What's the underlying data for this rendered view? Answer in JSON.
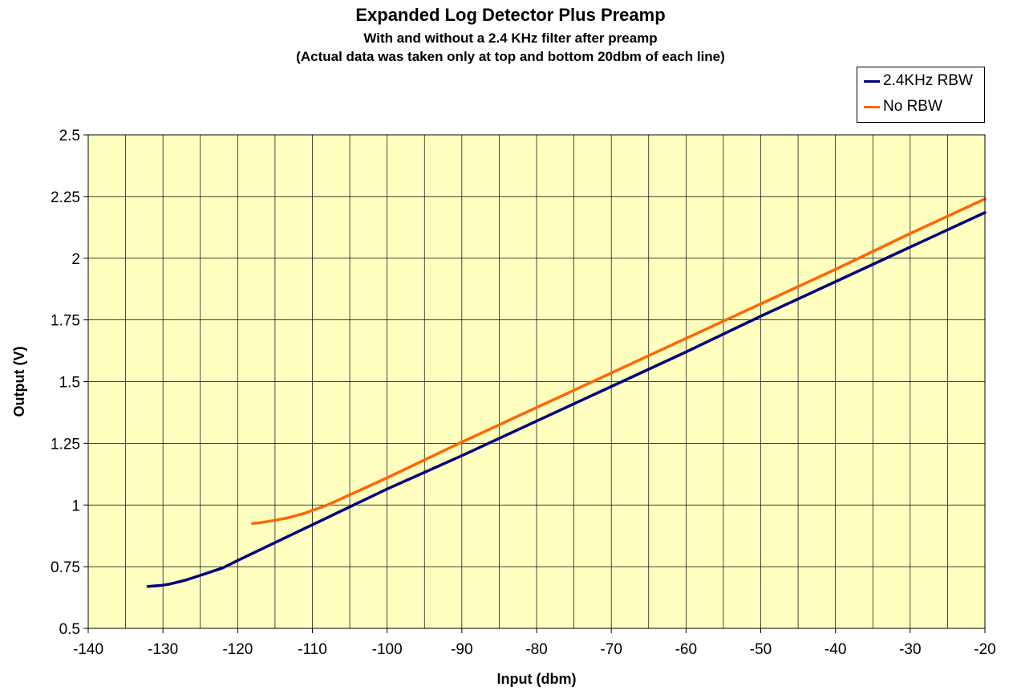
{
  "chart_data": {
    "type": "line",
    "title": "Expanded Log Detector Plus Preamp",
    "subtitle_1": "With and without a 2.4 KHz filter after preamp",
    "subtitle_2": "(Actual data was taken only at top and bottom 20dbm of each line)",
    "xlabel": "Input (dbm)",
    "ylabel": "Output (V)",
    "xlim": [
      -140,
      -20
    ],
    "ylim": [
      0.5,
      2.5
    ],
    "x_ticks": [
      -140,
      -130,
      -120,
      -110,
      -100,
      -90,
      -80,
      -70,
      -60,
      -50,
      -40,
      -30,
      -20
    ],
    "y_ticks": [
      0.5,
      0.75,
      1,
      1.25,
      1.5,
      1.75,
      2,
      2.25,
      2.5
    ],
    "x_tick_labels": [
      "-140",
      "-130",
      "-120",
      "-110",
      "-100",
      "-90",
      "-80",
      "-70",
      "-60",
      "-50",
      "-40",
      "-30",
      "-20"
    ],
    "y_tick_labels": [
      "0.5",
      "0.75",
      "1",
      "1.25",
      "1.5",
      "1.75",
      "2",
      "2.25",
      "2.5"
    ],
    "x_minor_step": 5,
    "grid": true,
    "plot_background": "#ffffc0",
    "legend_position": "top-right",
    "series": [
      {
        "name": "2.4KHz RBW",
        "color": "#000080",
        "x": [
          -132,
          -130,
          -129,
          -127,
          -126,
          -124,
          -122,
          -120,
          -110,
          -100,
          -90,
          -80,
          -70,
          -60,
          -50,
          -40,
          -30,
          -20
        ],
        "y": [
          0.67,
          0.675,
          0.68,
          0.695,
          0.705,
          0.725,
          0.745,
          0.775,
          0.92,
          1.065,
          1.2,
          1.34,
          1.48,
          1.62,
          1.765,
          1.905,
          2.045,
          2.185
        ]
      },
      {
        "name": "No RBW",
        "color": "#ff6600",
        "x": [
          -118,
          -117,
          -115,
          -113,
          -111,
          -110,
          -108,
          -100,
          -90,
          -80,
          -70,
          -60,
          -50,
          -40,
          -30,
          -20
        ],
        "y": [
          0.925,
          0.928,
          0.938,
          0.95,
          0.967,
          0.978,
          1.0,
          1.11,
          1.255,
          1.395,
          1.535,
          1.675,
          1.815,
          1.955,
          2.1,
          2.24
        ]
      }
    ]
  }
}
